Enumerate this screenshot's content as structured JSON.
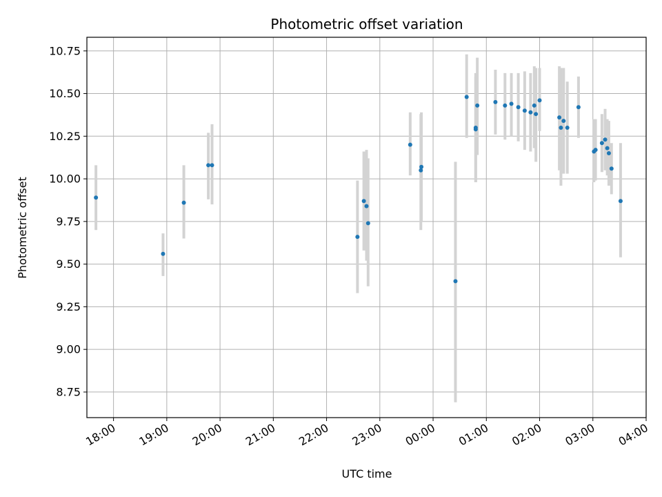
{
  "chart_data": {
    "type": "scatter",
    "title": "Photometric offset variation",
    "xlabel": "UTC time",
    "ylabel": "Photometric offset",
    "x_unit": "hours (UTC, 24h clock; values past 24 are after midnight)",
    "xlim": [
      17.5,
      28.0
    ],
    "ylim": [
      8.6,
      10.83
    ],
    "grid": true,
    "legend": "none",
    "marker_color": "#1f77b4",
    "errorbar_color": "#d3d3d3",
    "x_ticks": [
      18,
      19,
      20,
      21,
      22,
      23,
      24,
      25,
      26,
      27,
      28
    ],
    "x_tick_labels": [
      "18:00",
      "19:00",
      "20:00",
      "21:00",
      "22:00",
      "23:00",
      "00:00",
      "01:00",
      "02:00",
      "03:00",
      "04:00"
    ],
    "y_ticks": [
      8.75,
      9.0,
      9.25,
      9.5,
      9.75,
      10.0,
      10.25,
      10.5,
      10.75
    ],
    "y_tick_labels": [
      "8.75",
      "9.00",
      "9.25",
      "9.50",
      "9.75",
      "10.00",
      "10.25",
      "10.50",
      "10.75"
    ],
    "points": [
      {
        "x": 17.67,
        "y": 9.89,
        "lo": 9.7,
        "hi": 10.08
      },
      {
        "x": 18.93,
        "y": 9.56,
        "lo": 9.43,
        "hi": 9.68
      },
      {
        "x": 19.32,
        "y": 9.86,
        "lo": 9.65,
        "hi": 10.08
      },
      {
        "x": 19.78,
        "y": 10.08,
        "lo": 9.88,
        "hi": 10.27
      },
      {
        "x": 19.85,
        "y": 10.08,
        "lo": 9.85,
        "hi": 10.32
      },
      {
        "x": 22.58,
        "y": 9.66,
        "lo": 9.33,
        "hi": 9.99
      },
      {
        "x": 22.7,
        "y": 9.87,
        "lo": 9.58,
        "hi": 10.16
      },
      {
        "x": 22.75,
        "y": 9.84,
        "lo": 9.52,
        "hi": 10.17
      },
      {
        "x": 22.78,
        "y": 9.74,
        "lo": 9.37,
        "hi": 10.12
      },
      {
        "x": 23.57,
        "y": 10.2,
        "lo": 10.02,
        "hi": 10.39
      },
      {
        "x": 23.77,
        "y": 10.05,
        "lo": 9.7,
        "hi": 10.38
      },
      {
        "x": 23.78,
        "y": 10.07,
        "lo": 9.75,
        "hi": 10.39
      },
      {
        "x": 24.42,
        "y": 9.4,
        "lo": 8.69,
        "hi": 10.1
      },
      {
        "x": 24.63,
        "y": 10.48,
        "lo": 10.24,
        "hi": 10.73
      },
      {
        "x": 24.8,
        "y": 10.29,
        "lo": 9.98,
        "hi": 10.6
      },
      {
        "x": 24.8,
        "y": 10.3,
        "lo": 9.98,
        "hi": 10.62
      },
      {
        "x": 24.83,
        "y": 10.43,
        "lo": 10.14,
        "hi": 10.71
      },
      {
        "x": 25.17,
        "y": 10.45,
        "lo": 10.26,
        "hi": 10.64
      },
      {
        "x": 25.35,
        "y": 10.43,
        "lo": 10.23,
        "hi": 10.62
      },
      {
        "x": 25.47,
        "y": 10.44,
        "lo": 10.25,
        "hi": 10.62
      },
      {
        "x": 25.6,
        "y": 10.42,
        "lo": 10.22,
        "hi": 10.62
      },
      {
        "x": 25.72,
        "y": 10.4,
        "lo": 10.17,
        "hi": 10.63
      },
      {
        "x": 25.83,
        "y": 10.39,
        "lo": 10.16,
        "hi": 10.62
      },
      {
        "x": 25.9,
        "y": 10.43,
        "lo": 10.18,
        "hi": 10.66
      },
      {
        "x": 25.93,
        "y": 10.38,
        "lo": 10.1,
        "hi": 10.65
      },
      {
        "x": 26.0,
        "y": 10.46,
        "lo": 10.28,
        "hi": 10.65
      },
      {
        "x": 26.37,
        "y": 10.36,
        "lo": 10.05,
        "hi": 10.66
      },
      {
        "x": 26.4,
        "y": 10.3,
        "lo": 9.96,
        "hi": 10.65
      },
      {
        "x": 26.45,
        "y": 10.34,
        "lo": 10.03,
        "hi": 10.65
      },
      {
        "x": 26.52,
        "y": 10.3,
        "lo": 10.03,
        "hi": 10.57
      },
      {
        "x": 26.73,
        "y": 10.42,
        "lo": 10.24,
        "hi": 10.6
      },
      {
        "x": 27.02,
        "y": 10.16,
        "lo": 9.98,
        "hi": 10.35
      },
      {
        "x": 27.05,
        "y": 10.17,
        "lo": 9.99,
        "hi": 10.35
      },
      {
        "x": 27.17,
        "y": 10.21,
        "lo": 10.04,
        "hi": 10.38
      },
      {
        "x": 27.23,
        "y": 10.23,
        "lo": 10.05,
        "hi": 10.41
      },
      {
        "x": 27.27,
        "y": 10.18,
        "lo": 10.02,
        "hi": 10.35
      },
      {
        "x": 27.3,
        "y": 10.15,
        "lo": 9.96,
        "hi": 10.34
      },
      {
        "x": 27.35,
        "y": 10.06,
        "lo": 9.91,
        "hi": 10.21
      },
      {
        "x": 27.52,
        "y": 9.87,
        "lo": 9.54,
        "hi": 10.21
      }
    ]
  }
}
